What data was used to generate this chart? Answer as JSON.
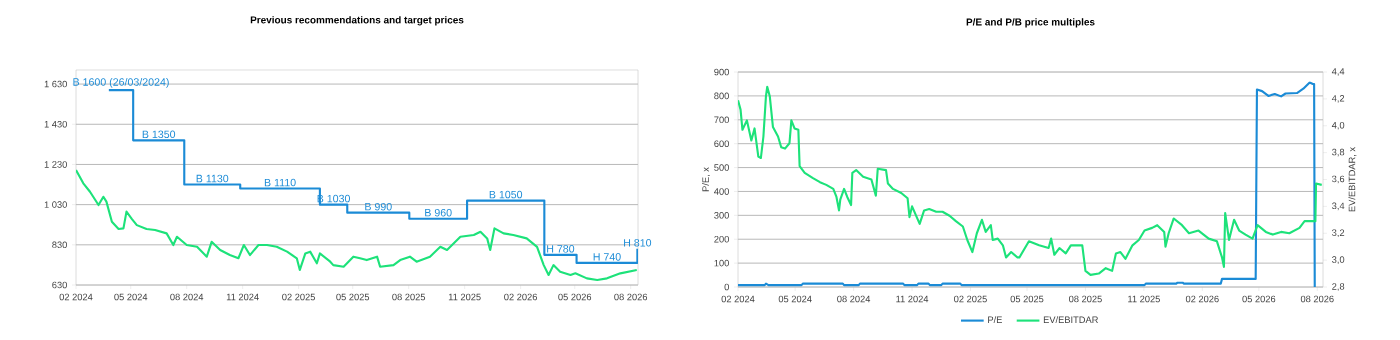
{
  "chart_data": [
    {
      "type": "line",
      "title": "Previous recommendations and target prices",
      "grid": "y",
      "xlim": [
        "2024-02-01",
        "2026-08-13"
      ],
      "xticks": [
        {
          "value": "2024-02-01",
          "label": "02 2024"
        },
        {
          "value": "2024-05-01",
          "label": "05 2024"
        },
        {
          "value": "2024-08-01",
          "label": "08 2024"
        },
        {
          "value": "2024-11-01",
          "label": "11 2024"
        },
        {
          "value": "2025-02-01",
          "label": "02 2025"
        },
        {
          "value": "2025-05-01",
          "label": "05 2025"
        },
        {
          "value": "2025-08-01",
          "label": "08 2025"
        },
        {
          "value": "2025-11-01",
          "label": "11 2025"
        },
        {
          "value": "2026-02-01",
          "label": "02 2026"
        },
        {
          "value": "2026-05-01",
          "label": "05 2026"
        },
        {
          "value": "2026-08-01",
          "label": "08 2026"
        }
      ],
      "ylim": [
        630,
        1700
      ],
      "yticks": [
        {
          "value": 630,
          "label": "630"
        },
        {
          "value": 830,
          "label": "830"
        },
        {
          "value": 1030,
          "label": "1 030"
        },
        {
          "value": 1230,
          "label": "1 230"
        },
        {
          "value": 1430,
          "label": "1 430"
        },
        {
          "value": 1630,
          "label": "1 630"
        }
      ],
      "series": [
        {
          "type": "step",
          "color": "#1b8bd6",
          "x": [
            "2024-03-26",
            "2024-05-05",
            "2024-07-28",
            "2024-10-28",
            "2025-03-08",
            "2025-04-22",
            "2025-08-02",
            "2025-11-05",
            "2026-03-12",
            "2026-05-04",
            "2026-08-12"
          ],
          "values": [
            1600,
            1350,
            1130,
            1110,
            1030,
            990,
            960,
            1050,
            780,
            740,
            810
          ]
        },
        {
          "type": "line",
          "color": "#1de27a",
          "x": [
            "2024-02-01",
            "2024-02-13",
            "2024-02-24",
            "2024-03-09",
            "2024-03-17",
            "2024-03-22",
            "2024-03-31",
            "2024-04-11",
            "2024-04-19",
            "2024-04-24",
            "2024-05-03",
            "2024-05-11",
            "2024-05-27",
            "2024-06-10",
            "2024-06-29",
            "2024-07-10",
            "2024-07-16",
            "2024-08-01",
            "2024-08-18",
            "2024-09-03",
            "2024-09-11",
            "2024-09-25",
            "2024-10-11",
            "2024-10-25",
            "2024-11-03",
            "2024-11-13",
            "2024-11-27",
            "2024-12-11",
            "2024-12-27",
            "2025-01-13",
            "2025-01-29",
            "2025-02-03",
            "2025-02-12",
            "2025-02-20",
            "2025-03-03",
            "2025-03-08",
            "2025-03-25",
            "2025-03-30",
            "2025-04-16",
            "2025-05-02",
            "2025-05-13",
            "2025-05-24",
            "2025-06-10",
            "2025-06-15",
            "2025-07-07",
            "2025-07-18",
            "2025-08-03",
            "2025-08-14",
            "2025-09-05",
            "2025-09-22",
            "2025-10-03",
            "2025-10-25",
            "2025-11-16",
            "2025-11-27",
            "2025-12-08",
            "2025-12-13",
            "2025-12-20",
            "2026-01-04",
            "2026-01-20",
            "2026-02-11",
            "2026-02-28",
            "2026-03-11",
            "2026-03-19",
            "2026-03-27",
            "2026-04-07",
            "2026-04-24",
            "2026-05-02",
            "2026-05-21",
            "2026-06-07",
            "2026-06-23",
            "2026-07-15",
            "2026-08-11"
          ],
          "values": [
            1202,
            1136,
            1094,
            1028,
            1069,
            1045,
            945,
            909,
            912,
            995,
            958,
            928,
            909,
            904,
            887,
            829,
            870,
            829,
            820,
            771,
            845,
            804,
            779,
            763,
            829,
            779,
            829,
            829,
            820,
            796,
            763,
            705,
            787,
            796,
            738,
            787,
            746,
            729,
            721,
            771,
            763,
            754,
            771,
            721,
            729,
            754,
            771,
            746,
            771,
            820,
            804,
            870,
            879,
            895,
            862,
            804,
            912,
            887,
            879,
            862,
            820,
            729,
            680,
            729,
            696,
            680,
            688,
            663,
            655,
            663,
            688,
            705
          ]
        }
      ],
      "annotations": [
        "B 1600 (26/03/2024)",
        "B 1350",
        "B 1130",
        "B 1110",
        "B 1030",
        "B 990",
        "B 960",
        "B 1050",
        "H 780",
        "H 740",
        "H 810"
      ]
    },
    {
      "type": "line",
      "title": "P/E and P/B price multiples",
      "ylabel": "P/E, x",
      "y2label": "EV/EBITDAR, x",
      "grid": "y",
      "legend": "bottom",
      "xlim": [
        "2024-02-01",
        "2026-08-10"
      ],
      "xticks": [
        {
          "value": "2024-02-01",
          "label": "02 2024"
        },
        {
          "value": "2024-05-01",
          "label": "05 2024"
        },
        {
          "value": "2024-08-01",
          "label": "08 2024"
        },
        {
          "value": "2024-11-01",
          "label": "11 2024"
        },
        {
          "value": "2025-02-01",
          "label": "02 2025"
        },
        {
          "value": "2025-05-01",
          "label": "05 2025"
        },
        {
          "value": "2025-08-01",
          "label": "08 2025"
        },
        {
          "value": "2025-11-01",
          "label": "11 2025"
        },
        {
          "value": "2026-02-01",
          "label": "02 2026"
        },
        {
          "value": "2026-05-01",
          "label": "05 2026"
        },
        {
          "value": "2026-08-01",
          "label": "08 2026"
        }
      ],
      "ylim": [
        0,
        900
      ],
      "yticks": [
        0,
        100,
        200,
        300,
        400,
        500,
        600,
        700,
        800,
        900
      ],
      "y2lim": [
        2.8,
        4.4
      ],
      "y2ticks": [
        {
          "value": 2.8,
          "label": "2,8"
        },
        {
          "value": 3.0,
          "label": "3,0"
        },
        {
          "value": 3.2,
          "label": "3,2"
        },
        {
          "value": 3.4,
          "label": "3,4"
        },
        {
          "value": 3.6,
          "label": "3,6"
        },
        {
          "value": 3.8,
          "label": "3,8"
        },
        {
          "value": 4.0,
          "label": "4,0"
        },
        {
          "value": 4.2,
          "label": "4,2"
        },
        {
          "value": 4.4,
          "label": "4,4"
        }
      ],
      "series": [
        {
          "name": "P/E",
          "color": "#1b8bd6",
          "x": [
            "2024-02-01",
            "2024-03-14",
            "2024-03-16",
            "2024-03-20",
            "2024-05-11",
            "2024-05-13",
            "2024-07-15",
            "2024-07-17",
            "2024-08-09",
            "2024-08-11",
            "2024-10-18",
            "2024-10-20",
            "2024-11-09",
            "2024-11-11",
            "2024-11-27",
            "2024-11-29",
            "2024-12-17",
            "2024-12-19",
            "2025-01-16",
            "2025-01-18",
            "2025-11-02",
            "2025-11-04",
            "2025-12-22",
            "2025-12-24",
            "2026-01-01",
            "2026-01-03",
            "2026-03-02",
            "2026-03-04",
            "2026-04-26",
            "2026-04-28",
            "2026-05-06",
            "2026-05-16",
            "2026-05-26",
            "2026-06-05",
            "2026-06-12",
            "2026-06-30",
            "2026-07-10",
            "2026-07-20",
            "2026-07-25",
            "2026-07-27",
            "2026-07-28"
          ],
          "values": [
            8,
            8,
            14,
            8,
            8,
            14,
            14,
            8,
            8,
            14,
            14,
            8,
            8,
            14,
            14,
            8,
            8,
            14,
            14,
            8,
            8,
            14,
            14,
            18,
            18,
            14,
            14,
            34,
            34,
            827,
            820,
            800,
            808,
            798,
            810,
            812,
            830,
            856,
            850,
            850,
            0
          ]
        },
        {
          "name": "EV/EBITDAR",
          "color": "#1de27a",
          "axis": "y2",
          "x": [
            "2024-02-01",
            "2024-02-05",
            "2024-02-08",
            "2024-02-15",
            "2024-02-22",
            "2024-02-27",
            "2024-03-04",
            "2024-03-08",
            "2024-03-12",
            "2024-03-16",
            "2024-03-18",
            "2024-03-22",
            "2024-03-27",
            "2024-04-04",
            "2024-04-09",
            "2024-04-15",
            "2024-04-22",
            "2024-04-25",
            "2024-04-30",
            "2024-05-06",
            "2024-05-08",
            "2024-05-16",
            "2024-05-29",
            "2024-06-09",
            "2024-06-19",
            "2024-06-30",
            "2024-07-05",
            "2024-07-09",
            "2024-07-11",
            "2024-07-17",
            "2024-07-22",
            "2024-07-28",
            "2024-07-30",
            "2024-08-05",
            "2024-08-16",
            "2024-08-29",
            "2024-09-05",
            "2024-09-08",
            "2024-09-21",
            "2024-09-24",
            "2024-10-02",
            "2024-10-15",
            "2024-10-25",
            "2024-10-28",
            "2024-11-01",
            "2024-11-13",
            "2024-11-20",
            "2024-11-28",
            "2024-12-09",
            "2024-12-19",
            "2024-12-30",
            "2025-01-09",
            "2025-01-20",
            "2025-01-27",
            "2025-02-04",
            "2025-02-11",
            "2025-02-19",
            "2025-02-25",
            "2025-03-05",
            "2025-03-08",
            "2025-03-16",
            "2025-03-24",
            "2025-03-29",
            "2025-04-06",
            "2025-04-16",
            "2025-04-19",
            "2025-05-04",
            "2025-05-20",
            "2025-06-04",
            "2025-06-08",
            "2025-06-13",
            "2025-06-21",
            "2025-07-01",
            "2025-07-09",
            "2025-07-27",
            "2025-08-01",
            "2025-08-09",
            "2025-08-22",
            "2025-09-02",
            "2025-09-12",
            "2025-09-18",
            "2025-09-25",
            "2025-10-03",
            "2025-10-14",
            "2025-10-24",
            "2025-11-02",
            "2025-11-14",
            "2025-11-22",
            "2025-12-03",
            "2025-12-05",
            "2025-12-10",
            "2025-12-18",
            "2025-12-31",
            "2026-01-11",
            "2026-01-26",
            "2026-02-11",
            "2026-02-24",
            "2026-03-04",
            "2026-03-07",
            "2026-03-09",
            "2026-03-15",
            "2026-03-23",
            "2026-03-31",
            "2026-04-10",
            "2026-04-21",
            "2026-04-29",
            "2026-05-12",
            "2026-05-23",
            "2026-06-05",
            "2026-06-18",
            "2026-07-04",
            "2026-07-12",
            "2026-07-23",
            "2026-07-29",
            "2026-07-30",
            "2026-08-08"
          ],
          "values": [
            4.19,
            4.12,
            3.97,
            4.04,
            3.89,
            3.98,
            3.77,
            3.76,
            3.92,
            4.22,
            4.29,
            4.22,
            3.99,
            3.92,
            3.84,
            3.83,
            3.87,
            4.04,
            3.98,
            3.97,
            3.7,
            3.65,
            3.61,
            3.58,
            3.56,
            3.53,
            3.47,
            3.37,
            3.45,
            3.53,
            3.47,
            3.41,
            3.65,
            3.67,
            3.62,
            3.6,
            3.48,
            3.68,
            3.67,
            3.57,
            3.53,
            3.5,
            3.46,
            3.32,
            3.4,
            3.27,
            3.37,
            3.38,
            3.36,
            3.36,
            3.33,
            3.29,
            3.25,
            3.15,
            3.06,
            3.2,
            3.3,
            3.21,
            3.26,
            3.15,
            3.16,
            3.11,
            3.02,
            3.06,
            3.02,
            3.02,
            3.14,
            3.11,
            3.09,
            3.16,
            3.04,
            3.09,
            3.05,
            3.11,
            3.11,
            2.92,
            2.89,
            2.9,
            2.94,
            2.92,
            3.05,
            3.06,
            3.01,
            3.11,
            3.15,
            3.22,
            3.24,
            3.26,
            3.21,
            3.1,
            3.2,
            3.31,
            3.26,
            3.2,
            3.22,
            3.16,
            3.14,
            3.02,
            2.95,
            3.35,
            3.15,
            3.3,
            3.22,
            3.19,
            3.16,
            3.26,
            3.21,
            3.19,
            3.21,
            3.2,
            3.24,
            3.29,
            3.29,
            3.29,
            3.57,
            3.56
          ]
        }
      ]
    }
  ]
}
